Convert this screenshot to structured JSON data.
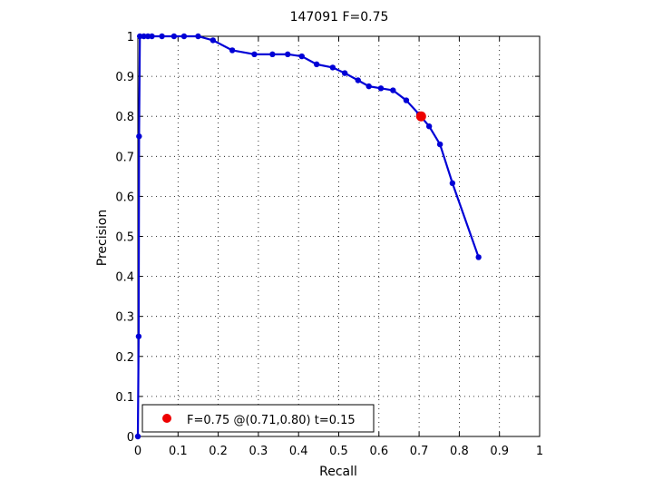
{
  "chart_data": {
    "type": "line",
    "title": "147091 F=0.75",
    "xlabel": "Recall",
    "ylabel": "Precision",
    "xlim": [
      0,
      1
    ],
    "ylim": [
      0,
      1
    ],
    "x_ticks": [
      "0",
      "0.1",
      "0.2",
      "0.3",
      "0.4",
      "0.5",
      "0.6",
      "0.7",
      "0.8",
      "0.9",
      "1"
    ],
    "y_ticks": [
      "0",
      "0.1",
      "0.2",
      "0.3",
      "0.4",
      "0.5",
      "0.6",
      "0.7",
      "0.8",
      "0.9",
      "1"
    ],
    "grid": true,
    "legend_position": "bottom-left",
    "colors": {
      "series": "#0000d6",
      "best": "#ee0000"
    },
    "series": [
      {
        "x": [
          0.0,
          0.002,
          0.003,
          0.005,
          0.015,
          0.025,
          0.035,
          0.06,
          0.09,
          0.115,
          0.15,
          0.187,
          0.235,
          0.29,
          0.335,
          0.373,
          0.408,
          0.445,
          0.485,
          0.515,
          0.548,
          0.575,
          0.605,
          0.635,
          0.668,
          0.7,
          0.725,
          0.752,
          0.783,
          0.848
        ],
        "y": [
          0.0,
          0.25,
          0.75,
          1.0,
          1.0,
          1.0,
          1.0,
          1.0,
          1.0,
          1.0,
          1.0,
          0.99,
          0.965,
          0.955,
          0.955,
          0.955,
          0.95,
          0.93,
          0.922,
          0.908,
          0.89,
          0.875,
          0.87,
          0.865,
          0.84,
          0.805,
          0.775,
          0.73,
          0.633,
          0.448
        ]
      }
    ],
    "best": {
      "x": 0.705,
      "y": 0.8
    },
    "legend_text": "F=0.75 @(0.71,0.80) t=0.15"
  }
}
